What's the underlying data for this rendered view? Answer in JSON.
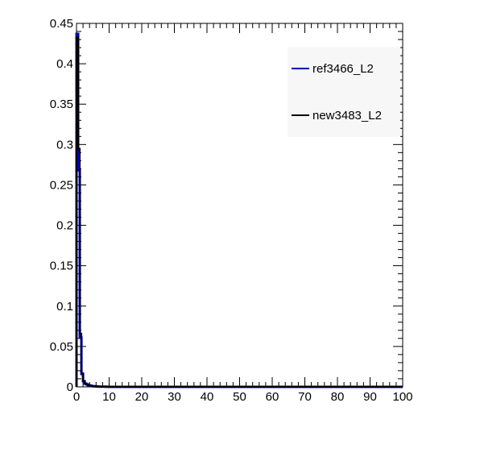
{
  "chart_data": {
    "type": "line",
    "title": "",
    "xlabel": "",
    "ylabel": "",
    "xlim": [
      0,
      100
    ],
    "ylim": [
      0,
      0.45
    ],
    "grid": false,
    "legend_position": "top-right",
    "x_tick_labels": [
      "0",
      "10",
      "20",
      "30",
      "40",
      "50",
      "60",
      "70",
      "80",
      "90",
      "100"
    ],
    "y_tick_labels": [
      "0",
      "0.05",
      "0.1",
      "0.15",
      "0.2",
      "0.25",
      "0.3",
      "0.35",
      "0.4",
      "0.45"
    ],
    "bin_width": 0.5,
    "series": [
      {
        "name": "ref3466_L2",
        "color": "#0000cc",
        "values": [
          0.437,
          0.268,
          0.061,
          0.016,
          0.007,
          0.004,
          0.003,
          0.002,
          0.0015,
          0.001,
          0.0008,
          0.0006,
          0.0005,
          0.0004,
          0.0003,
          0.0003,
          0.0002,
          0.0002,
          0.0001,
          0.0001
        ]
      },
      {
        "name": "new3483_L2",
        "color": "#000000",
        "values": [
          0.433,
          0.295,
          0.066,
          0.017,
          0.007,
          0.004,
          0.003,
          0.002,
          0.0015,
          0.001,
          0.0008,
          0.0006,
          0.0005,
          0.0004,
          0.0003,
          0.0003,
          0.0002,
          0.0002,
          0.0001,
          0.0001
        ]
      }
    ]
  }
}
